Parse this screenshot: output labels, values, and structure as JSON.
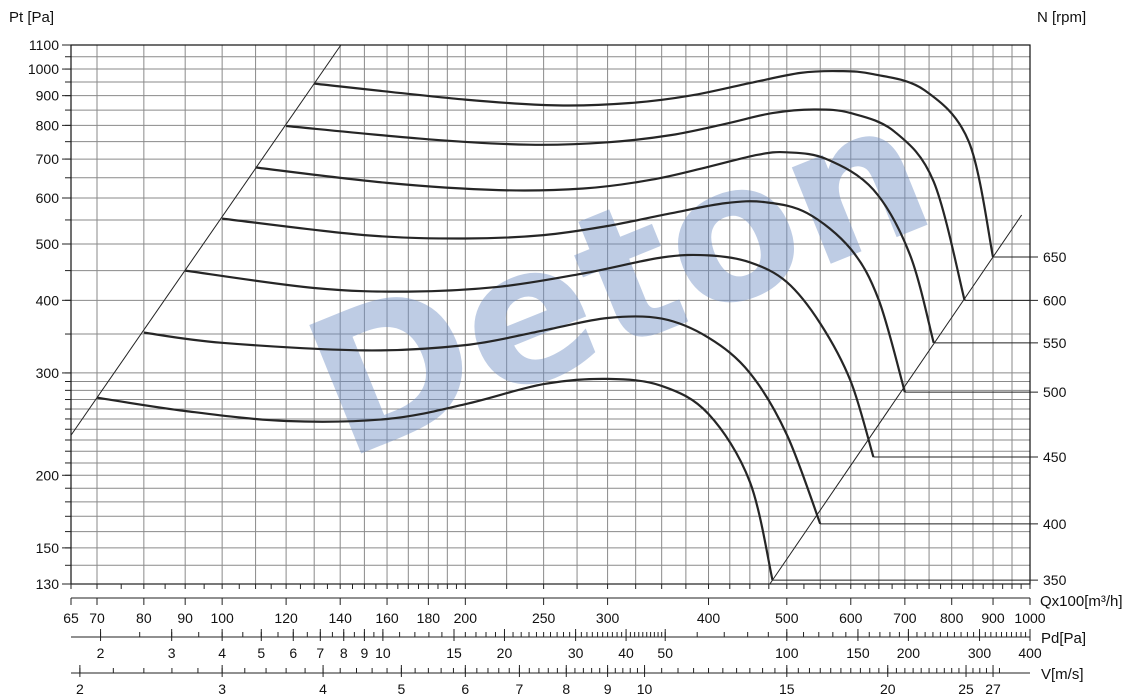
{
  "chart_data": {
    "type": "line",
    "y_axis": {
      "title": "Pt [Pa]",
      "scale": "log",
      "range": [
        130,
        1100
      ],
      "tick_labels": [
        1100,
        1000,
        900,
        800,
        700,
        600,
        500,
        400,
        300,
        200,
        150,
        130
      ]
    },
    "right_axis": {
      "title": "N [rpm]",
      "labels": [
        650,
        600,
        550,
        500,
        450,
        400,
        350
      ]
    },
    "x_axis": {
      "title": "Qx100[m³/h]",
      "scale": "log",
      "range": [
        65,
        1000
      ],
      "tick_labels": [
        65,
        70,
        80,
        90,
        100,
        120,
        140,
        160,
        180,
        200,
        250,
        300,
        400,
        500,
        600,
        700,
        800,
        900,
        1000
      ]
    },
    "pd_axis": {
      "title": "Pd[Pa]",
      "tick_labels": [
        2,
        3,
        4,
        5,
        6,
        7,
        8,
        9,
        10,
        15,
        20,
        30,
        40,
        50,
        100,
        150,
        200,
        300,
        400
      ]
    },
    "v_axis": {
      "title": "V[m/s]",
      "tick_labels": [
        2,
        3,
        4,
        5,
        6,
        7,
        8,
        9,
        10,
        15,
        20,
        25,
        27
      ]
    },
    "series": [
      {
        "name": "350",
        "points": [
          [
            70,
            272
          ],
          [
            90,
            258
          ],
          [
            120,
            248
          ],
          [
            160,
            250
          ],
          [
            200,
            265
          ],
          [
            250,
            287
          ],
          [
            300,
            293
          ],
          [
            350,
            285
          ],
          [
            400,
            255
          ],
          [
            450,
            195
          ],
          [
            480,
            132
          ]
        ]
      },
      {
        "name": "400",
        "points": [
          [
            80,
            352
          ],
          [
            100,
            338
          ],
          [
            150,
            328
          ],
          [
            200,
            335
          ],
          [
            250,
            355
          ],
          [
            300,
            373
          ],
          [
            350,
            372
          ],
          [
            400,
            345
          ],
          [
            450,
            300
          ],
          [
            500,
            235
          ],
          [
            550,
            165
          ]
        ]
      },
      {
        "name": "450",
        "points": [
          [
            90,
            450
          ],
          [
            130,
            420
          ],
          [
            170,
            414
          ],
          [
            220,
            422
          ],
          [
            280,
            445
          ],
          [
            350,
            474
          ],
          [
            400,
            478
          ],
          [
            450,
            465
          ],
          [
            500,
            430
          ],
          [
            550,
            365
          ],
          [
            600,
            290
          ],
          [
            640,
            215
          ]
        ]
      },
      {
        "name": "500",
        "points": [
          [
            100,
            553
          ],
          [
            150,
            518
          ],
          [
            200,
            511
          ],
          [
            250,
            518
          ],
          [
            300,
            537
          ],
          [
            360,
            565
          ],
          [
            420,
            588
          ],
          [
            470,
            590
          ],
          [
            530,
            565
          ],
          [
            600,
            490
          ],
          [
            650,
            400
          ],
          [
            700,
            278
          ]
        ]
      },
      {
        "name": "550",
        "points": [
          [
            110,
            677
          ],
          [
            160,
            637
          ],
          [
            220,
            619
          ],
          [
            280,
            623
          ],
          [
            340,
            645
          ],
          [
            400,
            679
          ],
          [
            460,
            712
          ],
          [
            500,
            719
          ],
          [
            560,
            700
          ],
          [
            640,
            620
          ],
          [
            710,
            480
          ],
          [
            760,
            338
          ]
        ]
      },
      {
        "name": "600",
        "points": [
          [
            120,
            798
          ],
          [
            180,
            757
          ],
          [
            240,
            741
          ],
          [
            300,
            748
          ],
          [
            360,
            770
          ],
          [
            420,
            805
          ],
          [
            480,
            840
          ],
          [
            540,
            852
          ],
          [
            600,
            840
          ],
          [
            680,
            780
          ],
          [
            760,
            640
          ],
          [
            830,
            400
          ]
        ]
      },
      {
        "name": "650",
        "points": [
          [
            130,
            944
          ],
          [
            200,
            886
          ],
          [
            260,
            866
          ],
          [
            320,
            874
          ],
          [
            380,
            900
          ],
          [
            450,
            946
          ],
          [
            520,
            985
          ],
          [
            580,
            992
          ],
          [
            640,
            980
          ],
          [
            740,
            920
          ],
          [
            840,
            750
          ],
          [
            900,
            475
          ]
        ]
      }
    ]
  }
}
